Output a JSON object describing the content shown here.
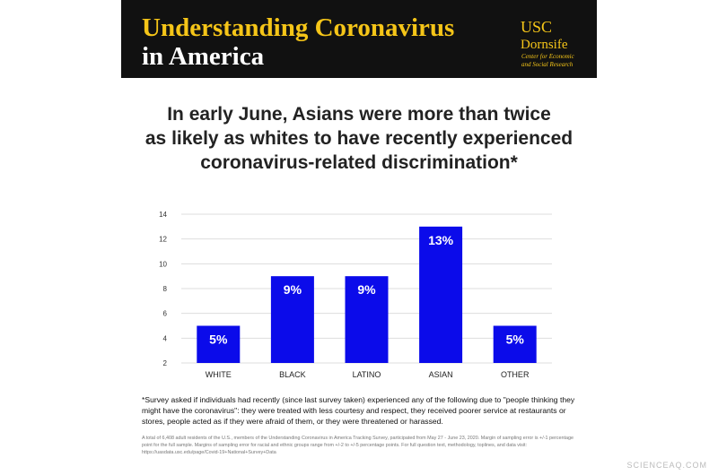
{
  "header": {
    "title_line1": "Understanding Coronavirus",
    "title_line2": "in America",
    "logo_line1": "USC",
    "logo_line2": "Dornsife",
    "logo_sub1": "Center for Economic",
    "logo_sub2": "and Social Research"
  },
  "chart_data": {
    "type": "bar",
    "title_lines": [
      "In early June, Asians were more than twice",
      "as likely as whites to have recently experienced",
      "coronavirus-related discrimination*"
    ],
    "categories": [
      "WHITE",
      "BLACK",
      "LATINO",
      "ASIAN",
      "OTHER"
    ],
    "values": [
      5,
      9,
      9,
      13,
      5
    ],
    "value_labels": [
      "5%",
      "9%",
      "9%",
      "13%",
      "5%"
    ],
    "color": "#0b0bea",
    "ylim": [
      2,
      14
    ],
    "yticks": [
      2,
      4,
      6,
      8,
      10,
      12,
      14
    ],
    "grid": true
  },
  "footnote": "*Survey asked if individuals had recently (since last survey taken) experienced any of the following due to \"people thinking they might have the coronavirus\": they were treated with less courtesy and respect, they received poorer service at restaurants or stores, people acted as if they were afraid of them, or they were threatened or harassed.",
  "source_note": "A total of 6,408 adult residents of the U.S., members of the Understanding Coronavirus in America Tracking Survey, participated from May 27 - June 23, 2020. Margin of sampling error is +/-1 percentage point for the full sample. Margins of sampling error for racial and ethnic groups range from +/-2 to +/-5 percentage points. For full question text, methodology, toplines, and data visit: https://uasdata.usc.edu/page/Covid-19+National+Survey+Data",
  "watermark": "SCIENCEAQ.COM"
}
